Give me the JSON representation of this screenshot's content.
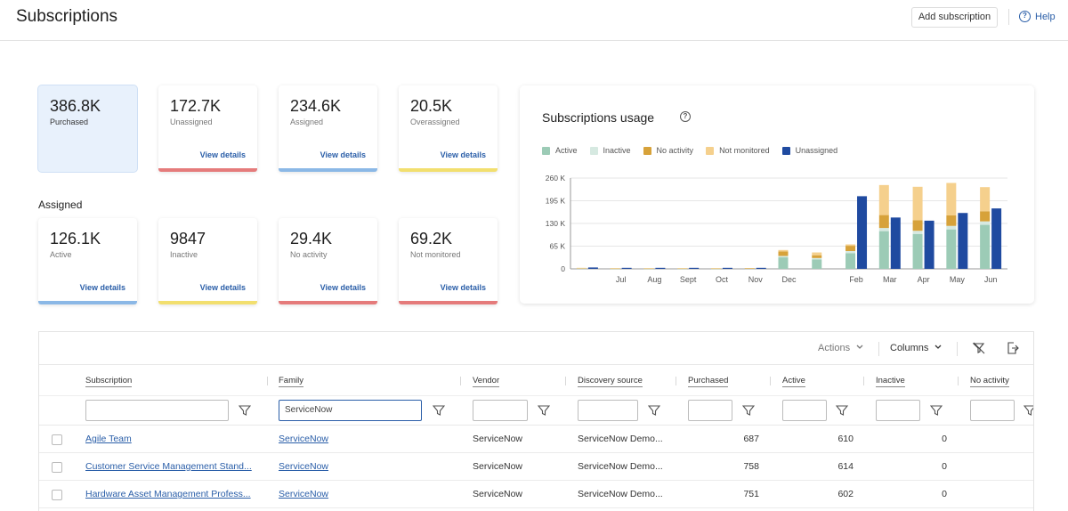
{
  "header": {
    "title": "Subscriptions",
    "add_label": "Add subscription",
    "help_label": "Help"
  },
  "summary_cards": [
    {
      "value": "386.8K",
      "label": "Purchased",
      "link": "",
      "bar": ""
    },
    {
      "value": "172.7K",
      "label": "Unassigned",
      "link": "View details",
      "bar": "#e57b7b"
    },
    {
      "value": "234.6K",
      "label": "Assigned",
      "link": "View details",
      "bar": "#8bb8e6"
    },
    {
      "value": "20.5K",
      "label": "Overassigned",
      "link": "View details",
      "bar": "#f2df6e"
    }
  ],
  "assigned_section": {
    "label": "Assigned"
  },
  "assigned_cards": [
    {
      "value": "126.1K",
      "label": "Active",
      "link": "View details",
      "bar": "#8bb8e6"
    },
    {
      "value": "9847",
      "label": "Inactive",
      "link": "View details",
      "bar": "#f2df6e"
    },
    {
      "value": "29.4K",
      "label": "No activity",
      "link": "View details",
      "bar": "#e57b7b"
    },
    {
      "value": "69.2K",
      "label": "Not monitored",
      "link": "View details",
      "bar": "#e57b7b"
    }
  ],
  "chart": {
    "title": "Subscriptions usage"
  },
  "chart_data": {
    "type": "bar",
    "title": "Subscriptions usage",
    "ylim": [
      0,
      260
    ],
    "yticks": [
      "0",
      "65 K",
      "130 K",
      "195 K",
      "260 K"
    ],
    "ytick_values": [
      0,
      65,
      130,
      195,
      260
    ],
    "categories": [
      "",
      "Jul",
      "Aug",
      "Sept",
      "Oct",
      "Nov",
      "Dec",
      "",
      "Feb",
      "Mar",
      "Apr",
      "May",
      "Jun"
    ],
    "legend_placement": "top",
    "stacked_series": [
      {
        "name": "Active",
        "color": "#9ccbb6",
        "values": [
          1,
          0.5,
          0.5,
          0.5,
          0.5,
          1,
          33,
          27,
          45,
          108,
          100,
          113,
          126
        ]
      },
      {
        "name": "Inactive",
        "color": "#d6e9e1",
        "values": [
          0.5,
          0,
          0,
          0,
          0,
          0,
          4,
          4,
          6,
          9,
          9,
          10,
          10
        ]
      },
      {
        "name": "No activity",
        "color": "#d7a23a",
        "values": [
          0.5,
          0.5,
          0.5,
          0.5,
          0.5,
          0.5,
          13,
          8,
          15,
          37,
          30,
          30,
          29
        ]
      },
      {
        "name": "Not monitored",
        "color": "#f5d08d",
        "values": [
          1,
          1,
          1,
          1,
          1,
          1,
          4,
          8,
          4,
          86,
          96,
          93,
          69
        ]
      }
    ],
    "single_series": {
      "name": "Unassigned",
      "color": "#1f4aa0",
      "values": [
        4,
        3,
        3,
        3,
        3,
        3,
        0,
        0,
        208,
        147,
        138,
        160,
        173
      ]
    },
    "grid": true
  },
  "table": {
    "actions_label": "Actions",
    "columns_label": "Columns",
    "headers": [
      "Subscription",
      "Family",
      "Vendor",
      "Discovery source",
      "Purchased",
      "Active",
      "Inactive",
      "No activity"
    ],
    "filters": [
      "",
      "ServiceNow",
      "",
      "",
      "",
      "",
      "",
      ""
    ],
    "rows": [
      {
        "subscription": "Agile Team",
        "family": "ServiceNow",
        "vendor": "ServiceNow",
        "discovery": "ServiceNow Demo...",
        "purchased": "687",
        "active": "610",
        "inactive": "0"
      },
      {
        "subscription": "Customer Service Management Stand...",
        "family": "ServiceNow",
        "vendor": "ServiceNow",
        "discovery": "ServiceNow Demo...",
        "purchased": "758",
        "active": "614",
        "inactive": "0"
      },
      {
        "subscription": "Hardware Asset Management Profess...",
        "family": "ServiceNow",
        "vendor": "ServiceNow",
        "discovery": "ServiceNow Demo...",
        "purchased": "751",
        "active": "602",
        "inactive": "0"
      }
    ]
  }
}
